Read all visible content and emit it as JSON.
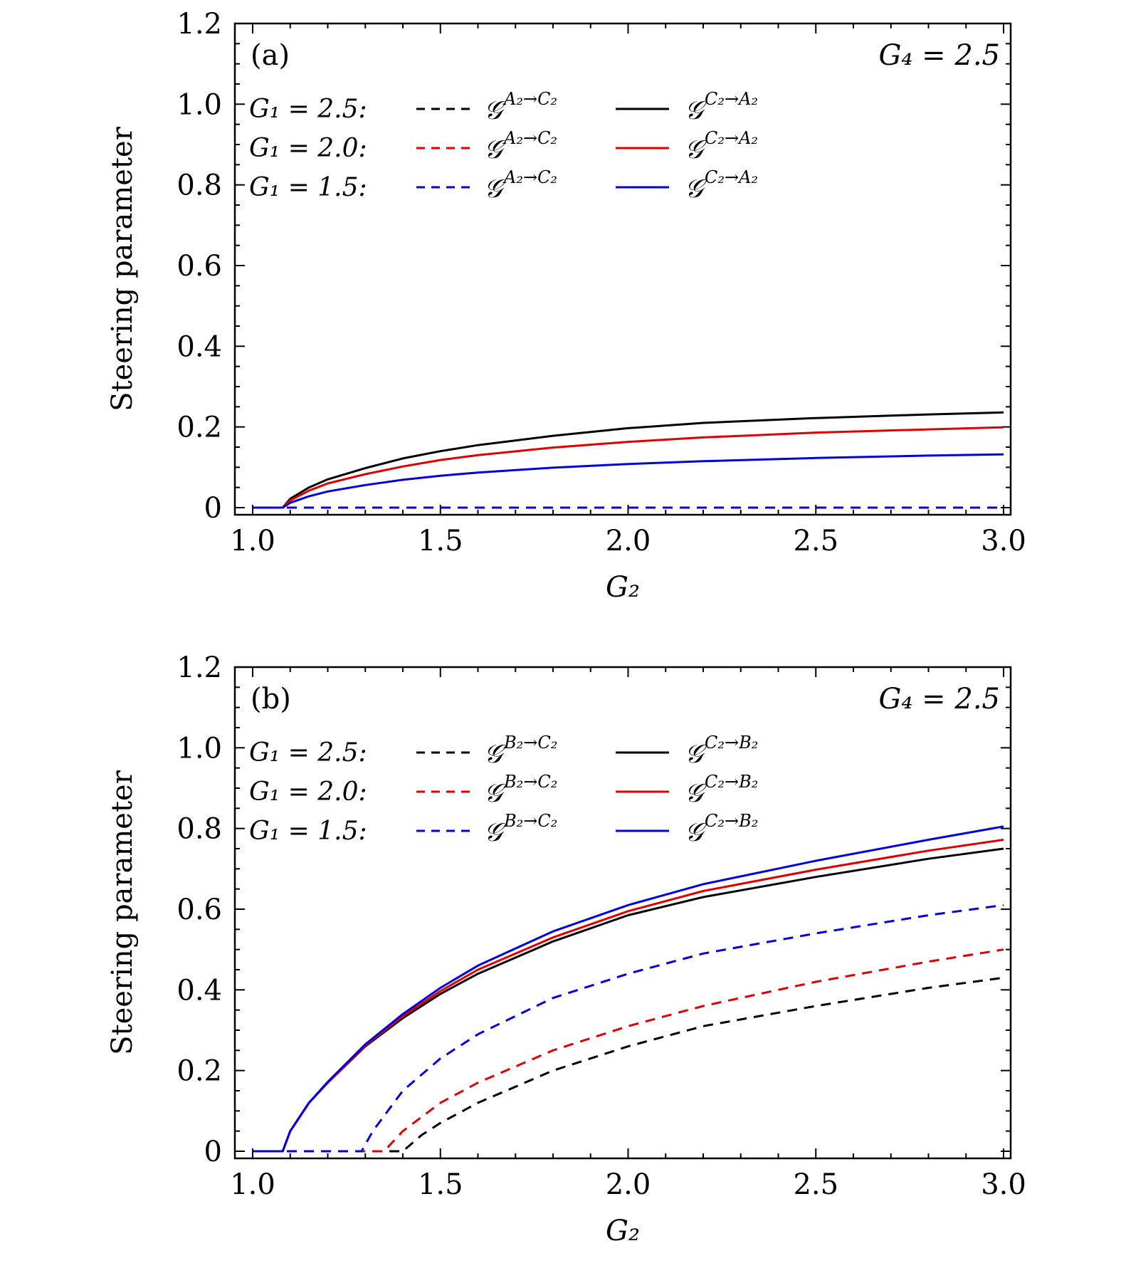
{
  "chart_data": [
    {
      "type": "line",
      "panel_label": "(a)",
      "annotation": "G₄ = 2.5",
      "xlabel": "G₂",
      "ylabel": "Steering parameter",
      "xlim": [
        1.0,
        3.0
      ],
      "ylim": [
        0,
        1.2
      ],
      "xticks": [
        "1.0",
        "1.5",
        "2.0",
        "2.5",
        "3.0"
      ],
      "yticks": [
        "0",
        "0.2",
        "0.4",
        "0.6",
        "0.8",
        "1.0",
        "1.2"
      ],
      "legend": [
        {
          "group": "G₁ = 2.5:",
          "color": "#000000",
          "dashed_symbol": "𝒢",
          "dashed_sup": "A₂→C₂",
          "solid_symbol": "𝒢",
          "solid_sup": "C₂→A₂"
        },
        {
          "group": "G₁ = 2.0:",
          "color": "#e00000",
          "dashed_symbol": "𝒢",
          "dashed_sup": "A₂→C₂",
          "solid_symbol": "𝒢",
          "solid_sup": "C₂→A₂"
        },
        {
          "group": "G₁ = 1.5:",
          "color": "#0000e0",
          "dashed_symbol": "𝒢",
          "dashed_sup": "A₂→C₂",
          "solid_symbol": "𝒢",
          "solid_sup": "C₂→A₂"
        }
      ],
      "series": [
        {
          "name": "G1=2.5 C2->A2",
          "color": "#000000",
          "dash": false,
          "x": [
            1.0,
            1.08,
            1.1,
            1.15,
            1.2,
            1.3,
            1.4,
            1.5,
            1.6,
            1.8,
            2.0,
            2.2,
            2.5,
            2.8,
            3.0
          ],
          "y": [
            0,
            0,
            0.022,
            0.05,
            0.07,
            0.098,
            0.122,
            0.14,
            0.155,
            0.178,
            0.197,
            0.21,
            0.222,
            0.231,
            0.236
          ]
        },
        {
          "name": "G1=2.0 C2->A2",
          "color": "#e00000",
          "dash": false,
          "x": [
            1.0,
            1.08,
            1.1,
            1.15,
            1.2,
            1.3,
            1.4,
            1.5,
            1.6,
            1.8,
            2.0,
            2.2,
            2.5,
            2.8,
            3.0
          ],
          "y": [
            0,
            0,
            0.018,
            0.042,
            0.06,
            0.083,
            0.102,
            0.118,
            0.13,
            0.149,
            0.163,
            0.174,
            0.186,
            0.194,
            0.199
          ]
        },
        {
          "name": "G1=1.5 C2->A2",
          "color": "#0000e0",
          "dash": false,
          "x": [
            1.0,
            1.08,
            1.1,
            1.15,
            1.2,
            1.3,
            1.4,
            1.5,
            1.6,
            1.8,
            2.0,
            2.2,
            2.5,
            2.8,
            3.0
          ],
          "y": [
            0,
            0,
            0.012,
            0.028,
            0.04,
            0.056,
            0.069,
            0.079,
            0.087,
            0.099,
            0.108,
            0.115,
            0.123,
            0.129,
            0.132
          ]
        },
        {
          "name": "G1=2.5 A2->C2",
          "color": "#000000",
          "dash": true,
          "x": [
            1.0,
            3.0
          ],
          "y": [
            0,
            0
          ]
        },
        {
          "name": "G1=2.0 A2->C2",
          "color": "#e00000",
          "dash": true,
          "x": [
            1.0,
            3.0
          ],
          "y": [
            0,
            0
          ]
        },
        {
          "name": "G1=1.5 A2->C2",
          "color": "#0000e0",
          "dash": true,
          "x": [
            1.0,
            3.0
          ],
          "y": [
            0,
            0
          ]
        }
      ]
    },
    {
      "type": "line",
      "panel_label": "(b)",
      "annotation": "G₄ = 2.5",
      "xlabel": "G₂",
      "ylabel": "Steering parameter",
      "xlim": [
        1.0,
        3.0
      ],
      "ylim": [
        0,
        1.2
      ],
      "xticks": [
        "1.0",
        "1.5",
        "2.0",
        "2.5",
        "3.0"
      ],
      "yticks": [
        "0",
        "0.2",
        "0.4",
        "0.6",
        "0.8",
        "1.0",
        "1.2"
      ],
      "legend": [
        {
          "group": "G₁ = 2.5:",
          "color": "#000000",
          "dashed_symbol": "𝒢",
          "dashed_sup": "B₂→C₂",
          "solid_symbol": "𝒢",
          "solid_sup": "C₂→B₂"
        },
        {
          "group": "G₁ = 2.0:",
          "color": "#e00000",
          "dashed_symbol": "𝒢",
          "dashed_sup": "B₂→C₂",
          "solid_symbol": "𝒢",
          "solid_sup": "C₂→B₂"
        },
        {
          "group": "G₁ = 1.5:",
          "color": "#0000e0",
          "dashed_symbol": "𝒢",
          "dashed_sup": "B₂→C₂",
          "solid_symbol": "𝒢",
          "solid_sup": "C₂→B₂"
        }
      ],
      "series": [
        {
          "name": "G1=2.5 C2->B2",
          "color": "#000000",
          "dash": false,
          "x": [
            1.0,
            1.08,
            1.1,
            1.15,
            1.2,
            1.3,
            1.4,
            1.5,
            1.6,
            1.8,
            2.0,
            2.2,
            2.5,
            2.8,
            3.0
          ],
          "y": [
            0,
            0,
            0.05,
            0.12,
            0.17,
            0.26,
            0.33,
            0.39,
            0.44,
            0.52,
            0.585,
            0.63,
            0.68,
            0.725,
            0.75
          ]
        },
        {
          "name": "G1=2.0 C2->B2",
          "color": "#e00000",
          "dash": false,
          "x": [
            1.0,
            1.08,
            1.1,
            1.15,
            1.2,
            1.3,
            1.4,
            1.5,
            1.6,
            1.8,
            2.0,
            2.2,
            2.5,
            2.8,
            3.0
          ],
          "y": [
            0,
            0,
            0.05,
            0.12,
            0.17,
            0.262,
            0.335,
            0.397,
            0.45,
            0.53,
            0.595,
            0.645,
            0.698,
            0.745,
            0.772
          ]
        },
        {
          "name": "G1=1.5 C2->B2",
          "color": "#0000e0",
          "dash": false,
          "x": [
            1.0,
            1.08,
            1.1,
            1.15,
            1.2,
            1.3,
            1.4,
            1.5,
            1.6,
            1.8,
            2.0,
            2.2,
            2.5,
            2.8,
            3.0
          ],
          "y": [
            0,
            0,
            0.05,
            0.12,
            0.172,
            0.265,
            0.34,
            0.405,
            0.46,
            0.545,
            0.61,
            0.662,
            0.72,
            0.772,
            0.805
          ]
        },
        {
          "name": "G1=2.5 B2->C2",
          "color": "#000000",
          "dash": true,
          "x": [
            1.0,
            1.4,
            1.45,
            1.5,
            1.6,
            1.8,
            2.0,
            2.2,
            2.5,
            2.8,
            3.0
          ],
          "y": [
            0,
            0,
            0.04,
            0.07,
            0.12,
            0.2,
            0.26,
            0.31,
            0.36,
            0.405,
            0.43
          ]
        },
        {
          "name": "G1=2.0 B2->C2",
          "color": "#e00000",
          "dash": true,
          "x": [
            1.0,
            1.35,
            1.4,
            1.5,
            1.6,
            1.8,
            2.0,
            2.2,
            2.5,
            2.8,
            3.0
          ],
          "y": [
            0,
            0,
            0.05,
            0.12,
            0.17,
            0.25,
            0.31,
            0.36,
            0.42,
            0.47,
            0.5
          ]
        },
        {
          "name": "G1=1.5 B2->C2",
          "color": "#0000e0",
          "dash": true,
          "x": [
            1.0,
            1.29,
            1.32,
            1.4,
            1.5,
            1.6,
            1.8,
            2.0,
            2.2,
            2.5,
            2.8,
            3.0
          ],
          "y": [
            0,
            0,
            0.05,
            0.15,
            0.23,
            0.29,
            0.38,
            0.44,
            0.49,
            0.54,
            0.585,
            0.61
          ]
        }
      ]
    }
  ]
}
